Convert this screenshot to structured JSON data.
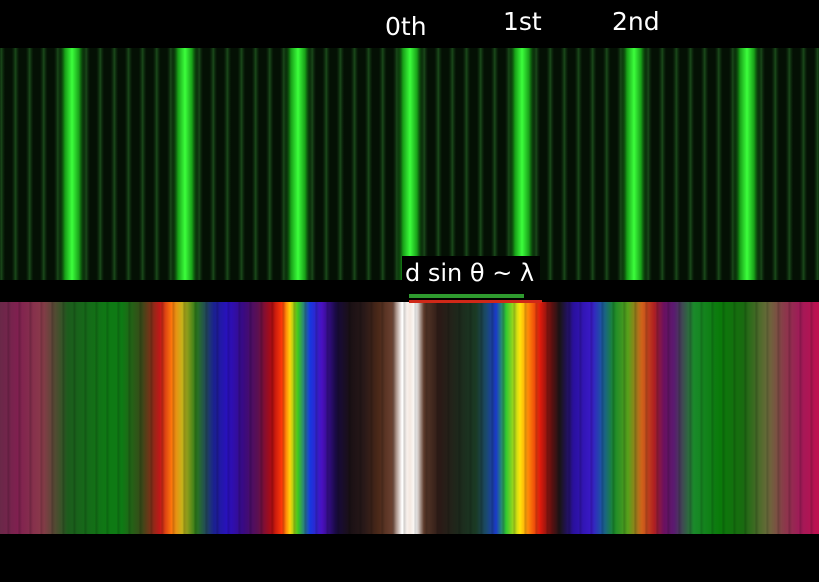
{
  "labels": {
    "order_0": "0th",
    "order_1": "1st",
    "order_2": "2nd",
    "formula": "d sin θ ~ λ"
  },
  "colors": {
    "background": "#000000",
    "mono_fringe": "#22ee22",
    "green_underline": "#2e9a2e",
    "red_underline": "#d02818",
    "label_text": "#ffffff"
  }
}
